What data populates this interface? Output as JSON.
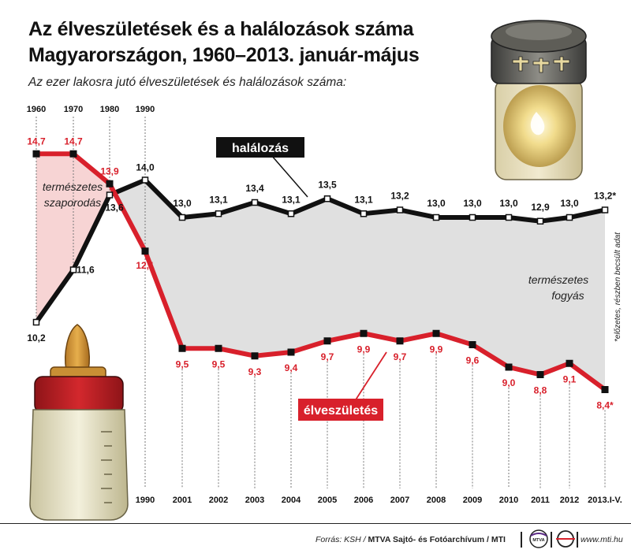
{
  "title_line1": "Az élveszületések és a halálozások száma",
  "title_line2": "Magyarországon, 1960–2013. január-május",
  "subtitle": "Az ezer lakosra jutó élveszületések és halálozások száma:",
  "top_labels": [
    "1960",
    "1970",
    "1980",
    "1990"
  ],
  "bottom_labels": [
    "1990",
    "2001",
    "2002",
    "2003",
    "2004",
    "2005",
    "2006",
    "2007",
    "2008",
    "2009",
    "2010",
    "2011",
    "2012",
    "2013.I-V."
  ],
  "annotations": {
    "natural_increase": "természetes szaporodás",
    "natural_decrease": "természetes fogyás",
    "deaths_label": "halálozás",
    "births_label": "élveszületés"
  },
  "note": "*előzetes, részben becsült adat",
  "footer": {
    "source_prefix": "Forrás: KSH / ",
    "source_bold": "MTVA Sajtó- és Fotóarchívum / MTI",
    "site": "www.mti.hu",
    "mtva_logo_text": "MTVA"
  },
  "colors": {
    "births": "#d8202b",
    "deaths": "#111111",
    "increase_fill": "#f7d4d4",
    "decrease_fill": "#e0e0e0"
  },
  "chart_data": {
    "type": "line",
    "categories": [
      "1960",
      "1970",
      "1980",
      "1990",
      "2001",
      "2002",
      "2003",
      "2004",
      "2005",
      "2006",
      "2007",
      "2008",
      "2009",
      "2010",
      "2011",
      "2012",
      "2013.I-V."
    ],
    "series": [
      {
        "name": "élveszületés",
        "values": [
          14.7,
          14.7,
          13.9,
          12.1,
          9.5,
          9.5,
          9.3,
          9.4,
          9.7,
          9.9,
          9.7,
          9.9,
          9.6,
          9.0,
          8.8,
          9.1,
          8.4
        ],
        "labels": [
          "14,7",
          "14,7",
          "13,9",
          "12,1",
          "9,5",
          "9,5",
          "9,3",
          "9,4",
          "9,7",
          "9,9",
          "9,7",
          "9,9",
          "9,6",
          "9,0",
          "8,8",
          "9,1",
          "8,4*"
        ]
      },
      {
        "name": "halálozás",
        "values": [
          10.2,
          11.6,
          13.6,
          14.0,
          13.0,
          13.1,
          13.4,
          13.1,
          13.5,
          13.1,
          13.2,
          13.0,
          13.0,
          13.0,
          12.9,
          13.0,
          13.2
        ],
        "labels": [
          "10,2",
          "11,6",
          "13,6",
          "14,0",
          "13,0",
          "13,1",
          "13,4",
          "13,1",
          "13,5",
          "13,1",
          "13,2",
          "13,0",
          "13,0",
          "13,0",
          "12,9",
          "13,0",
          "13,2*"
        ]
      }
    ]
  }
}
